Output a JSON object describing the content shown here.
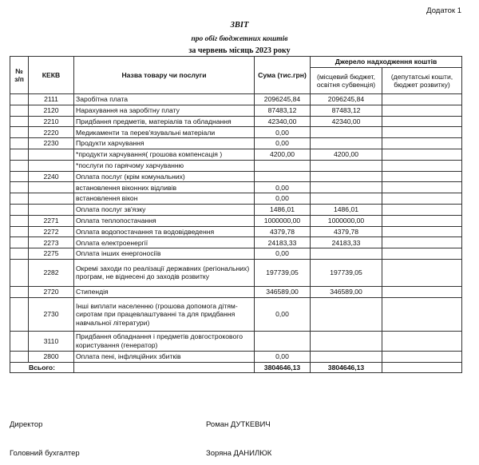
{
  "appendix": "Додаток 1",
  "title": "ЗВІТ",
  "subtitle": "про обіг бюджетних коштів",
  "period": "за червень місяць 2023 року",
  "headers": {
    "num": "№ з/п",
    "kekv": "КЕКВ",
    "name": "Назва товару чи послуги",
    "sum": "Сума (тис.грн)",
    "source": "Джерело надходження коштів",
    "source1": "(місцевий бюджет, освітня субвенція)",
    "source2": "(депутатські кошти, бюджет розвитку)"
  },
  "rows": [
    {
      "kekv": "2111",
      "name": "Заробітна плата",
      "sum": "2096245,84",
      "s1": "2096245,84",
      "s2": ""
    },
    {
      "kekv": "2120",
      "name": "Нарахування на заробітну плату",
      "sum": "87483,12",
      "s1": "87483,12",
      "s2": ""
    },
    {
      "kekv": "2210",
      "name": "Придбання предметів, матеріалів та обладнання",
      "sum": "42340,00",
      "s1": "42340,00",
      "s2": ""
    },
    {
      "kekv": "2220",
      "name": "Медикаменти та перев'язувальні матеріали",
      "sum": "0,00",
      "s1": "",
      "s2": ""
    },
    {
      "kekv": "2230",
      "name": "Продукти харчування",
      "sum": "0,00",
      "s1": "",
      "s2": ""
    },
    {
      "kekv": "",
      "name": "*продукти харчування( грошова компенсація )",
      "sum": "4200,00",
      "s1": "4200,00",
      "s2": ""
    },
    {
      "kekv": "",
      "name": "*послуги по гарячому харчуванню",
      "sum": "",
      "s1": "",
      "s2": ""
    },
    {
      "kekv": "2240",
      "name": "Оплата послуг (крім комунальних)",
      "sum": "",
      "s1": "",
      "s2": ""
    },
    {
      "kekv": "",
      "name": "встановлення віконних відливів",
      "sum": "0,00",
      "s1": "",
      "s2": ""
    },
    {
      "kekv": "",
      "name": "встановлення вікон",
      "sum": "0,00",
      "s1": "",
      "s2": ""
    },
    {
      "kekv": "",
      "name": "Оплата послуг зв'язку",
      "sum": "1486,01",
      "s1": "1486,01",
      "s2": ""
    },
    {
      "kekv": "2271",
      "name": "Оплата теплопостачання",
      "sum": "1000000,00",
      "s1": "1000000,00",
      "s2": ""
    },
    {
      "kekv": "2272",
      "name": "Оплата водопостачання та водовідведення",
      "sum": "4379,78",
      "s1": "4379,78",
      "s2": ""
    },
    {
      "kekv": "2273",
      "name": "Оплата електроенергії",
      "sum": "24183,33",
      "s1": "24183,33",
      "s2": ""
    },
    {
      "kekv": "2275",
      "name": "Оплата інших енергоносіїв",
      "sum": "0,00",
      "s1": "",
      "s2": ""
    },
    {
      "kekv": "2282",
      "name": "Окремі заходи по реалізації державних (регіональних) програм, не віднесені до заходів розвитку",
      "sum": "197739,05",
      "s1": "197739,05",
      "s2": ""
    },
    {
      "kekv": "2720",
      "name": "Стипендія",
      "sum": "346589,00",
      "s1": "346589,00",
      "s2": ""
    },
    {
      "kekv": "2730",
      "name": "Інші виплати населенню (грошова допомога дітям-сиротам при працевлаштуванні та для придбання навчальної літератури)",
      "sum": "0,00",
      "s1": "",
      "s2": ""
    },
    {
      "kekv": "3110",
      "name": "Придбання обладнання і предметів довгострокового користування (генератор)",
      "sum": "",
      "s1": "",
      "s2": ""
    },
    {
      "kekv": "2800",
      "name": "Оплата пені, інфляційних збитків",
      "sum": "0,00",
      "s1": "",
      "s2": ""
    }
  ],
  "total": {
    "label": "Всього:",
    "sum": "3804646,13",
    "s1": "3804646,13",
    "s2": ""
  },
  "signatures": [
    {
      "role": "Директор",
      "name": "Роман ДУТКЕВИЧ"
    },
    {
      "role": "Головний бухгалтер",
      "name": "Зоряна ДАНИЛЮК"
    }
  ]
}
